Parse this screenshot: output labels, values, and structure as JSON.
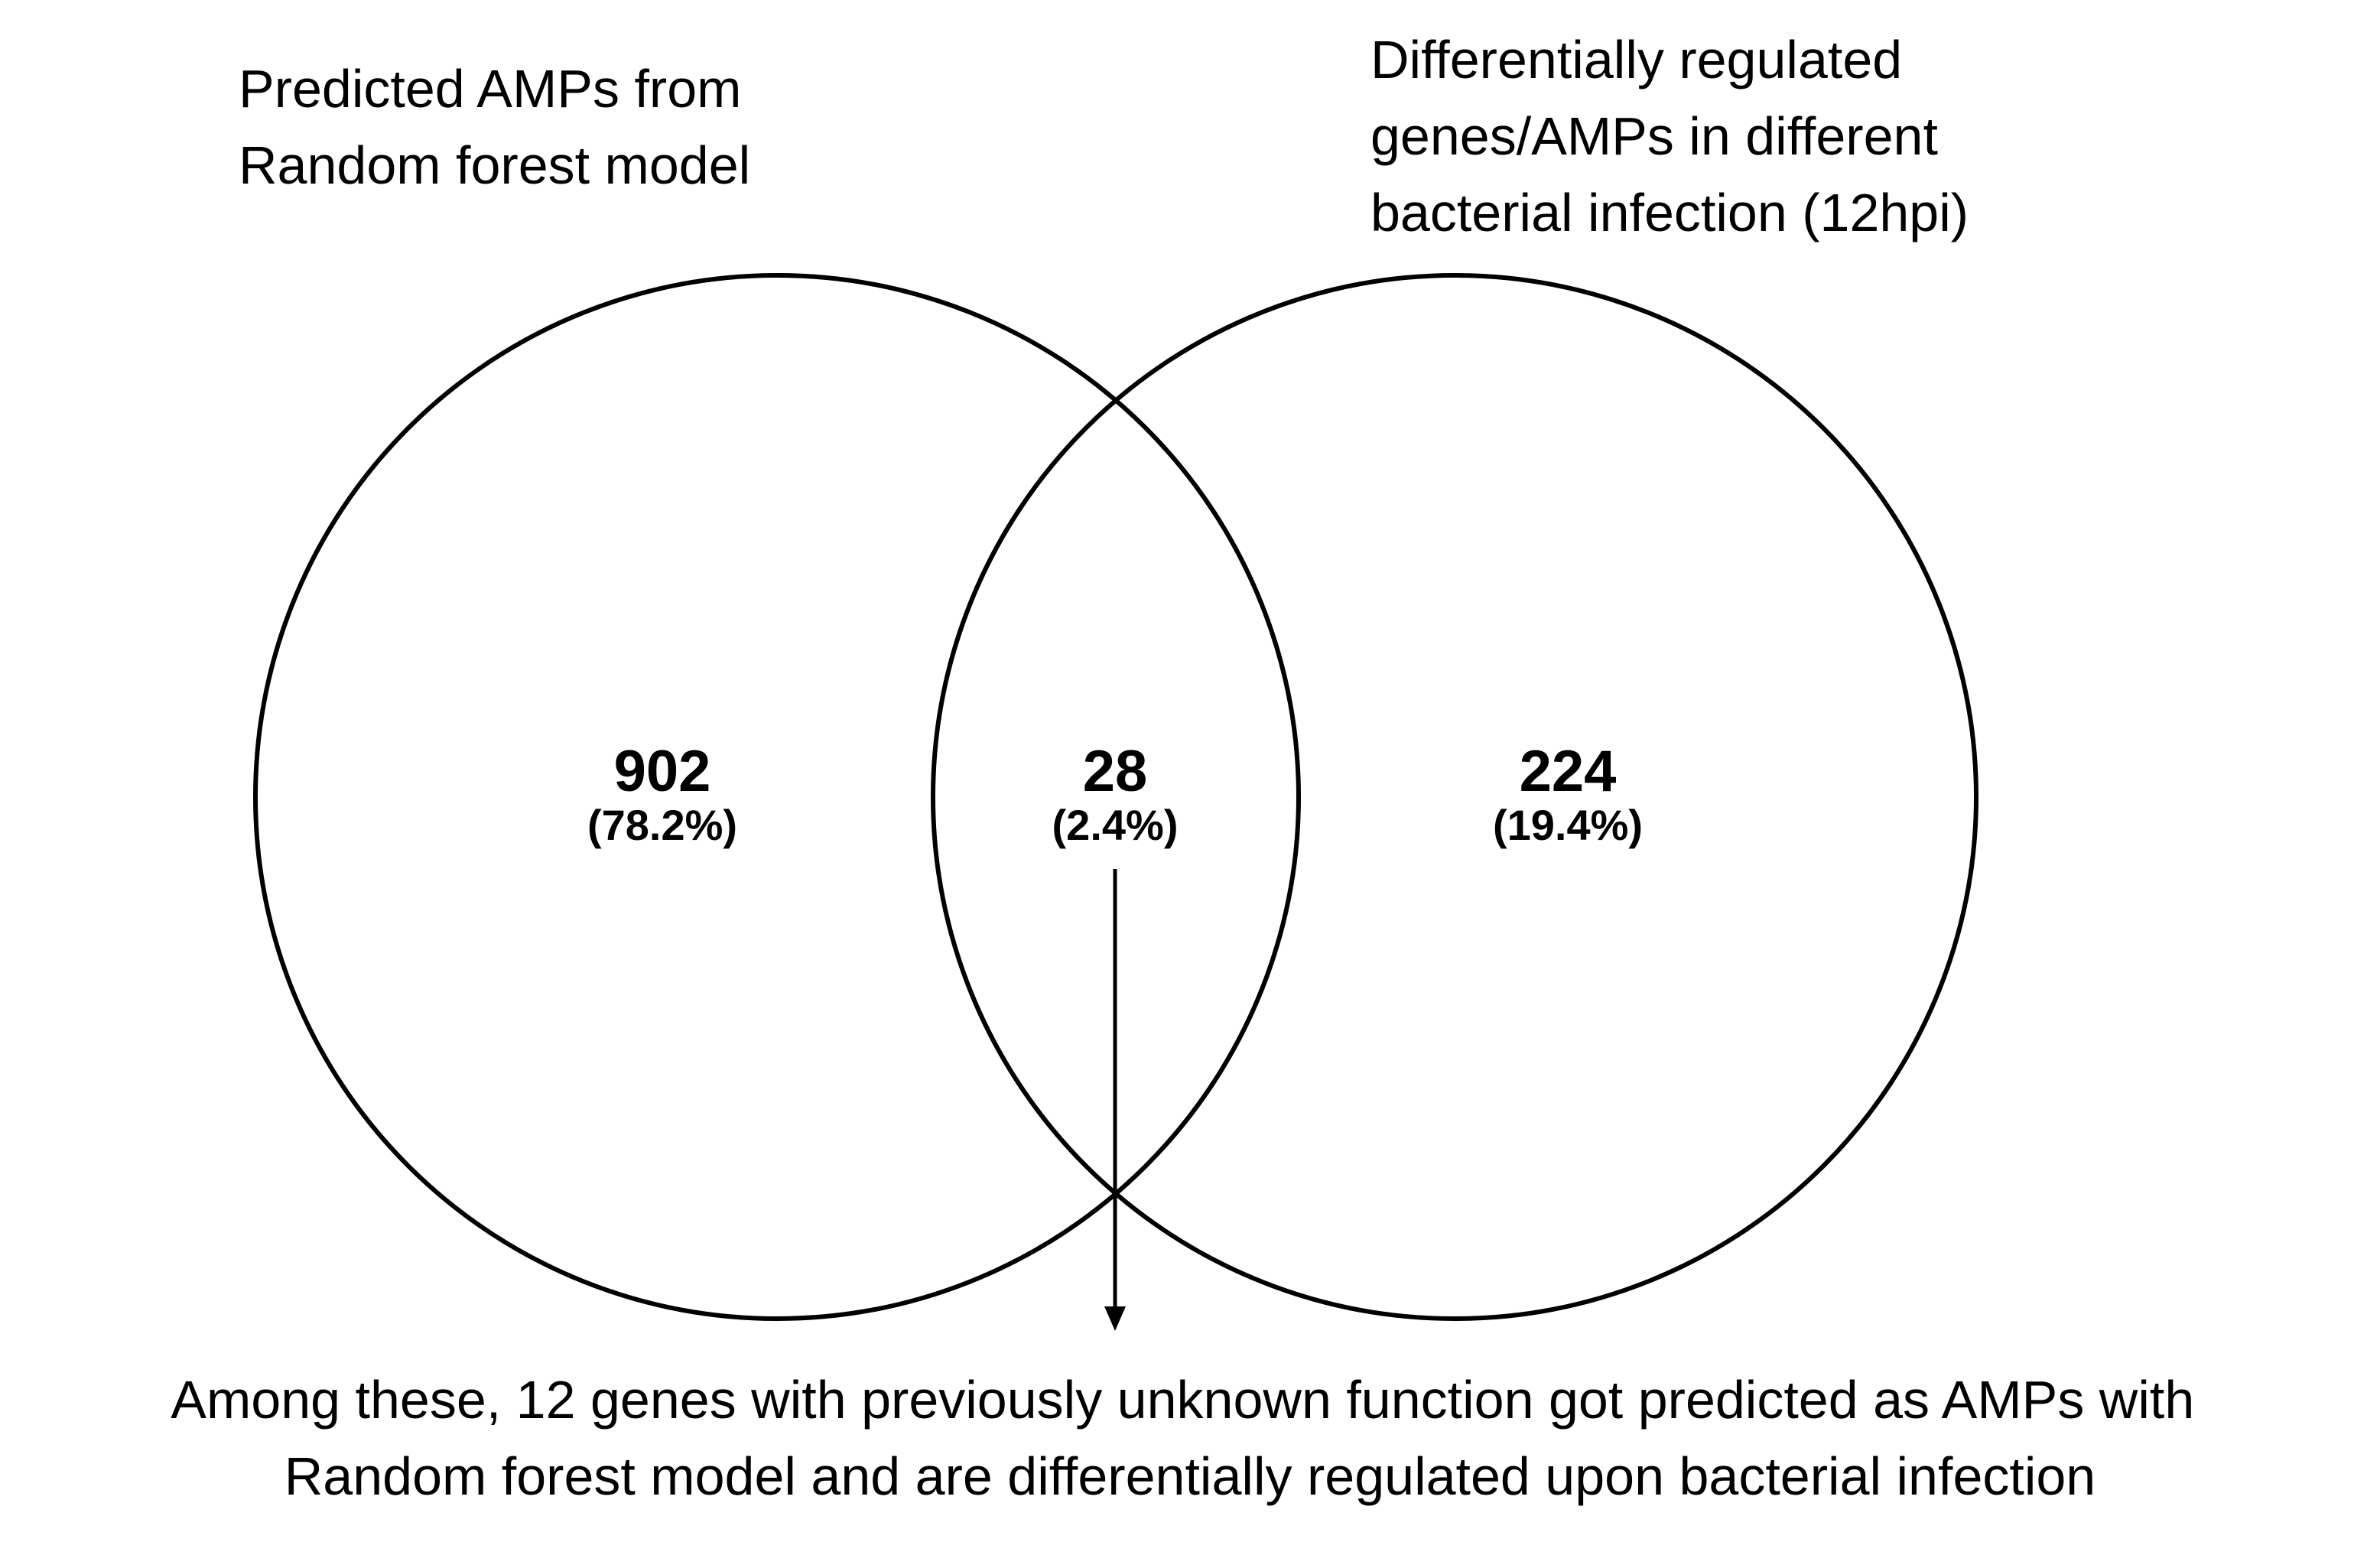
{
  "sets": {
    "left": {
      "label_lines": [
        "Predicted AMPs from",
        "Random forest model"
      ],
      "count": "902",
      "percent": "(78.2%)"
    },
    "right": {
      "label_lines": [
        "Differentially regulated",
        "genes/AMPs in different",
        "bacterial infection (12hpi)"
      ],
      "count": "224",
      "percent": "(19.4%)"
    },
    "overlap": {
      "count": "28",
      "percent": "(2.4%)"
    }
  },
  "caption": {
    "lines": [
      "Among these, 12 genes with previously unknown function got predicted as AMPs with",
      "Random forest model and are differentially regulated upon bacterial infection"
    ]
  }
}
